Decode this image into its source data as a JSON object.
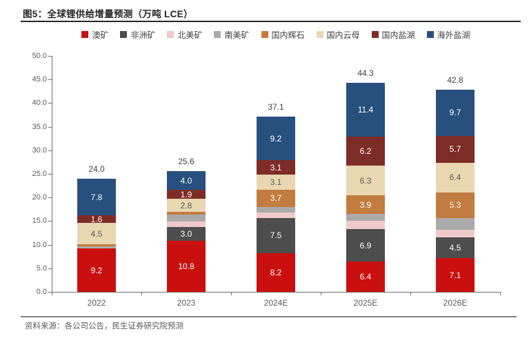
{
  "header": {
    "title": "图5：全球锂供给增量预测（万吨 LCE）"
  },
  "source_note": "资料来源：各公司公告，民生证券研究院预测",
  "colors": {
    "title_text": "#262626",
    "axis": "#6e6e6e",
    "axis_text": "#595959",
    "total_text": "#404040",
    "rule": "#7f7f7f"
  },
  "chart_data": {
    "type": "bar",
    "stacked": true,
    "title": "图5：全球锂供给增量预测（万吨 LCE）",
    "xlabel": "",
    "ylabel": "",
    "ylim": [
      0,
      50
    ],
    "y_step": 5,
    "y_ticks": [
      "0.0",
      "5.0",
      "10.0",
      "15.0",
      "20.0",
      "25.0",
      "30.0",
      "35.0",
      "40.0",
      "45.0",
      "50.0"
    ],
    "grid": false,
    "legend_position": "top",
    "categories": [
      "2022",
      "2023",
      "2024E",
      "2025E",
      "2026E"
    ],
    "totals": [
      24.0,
      25.6,
      37.1,
      44.3,
      42.8
    ],
    "total_labels": [
      "24.0",
      "25.6",
      "37.1",
      "44.3",
      "42.8"
    ],
    "series": [
      {
        "name": "澳矿",
        "color": "#c9100e",
        "label_color": "#ffffff",
        "values": [
          9.2,
          10.8,
          8.2,
          6.4,
          7.1
        ],
        "labels": [
          "9.2",
          "10.8",
          "8.2",
          "6.4",
          "7.1"
        ]
      },
      {
        "name": "非洲矿",
        "color": "#4d4d4d",
        "label_color": "#ffffff",
        "values": [
          0,
          3.0,
          7.5,
          6.9,
          4.5
        ],
        "labels": [
          "",
          "3.0",
          "7.5",
          "6.9",
          "4.5"
        ]
      },
      {
        "name": "北美矿",
        "color": "#f0caca",
        "label_color": "#595959",
        "values": [
          0,
          1.1,
          1.1,
          1.8,
          1.5
        ],
        "labels": [
          "",
          "",
          "",
          "",
          ""
        ]
      },
      {
        "name": "南美矿",
        "color": "#aaaaaa",
        "label_color": "#595959",
        "values": [
          0.4,
          1.5,
          1.2,
          1.4,
          2.6
        ],
        "labels": [
          "",
          "",
          "",
          "",
          ""
        ]
      },
      {
        "name": "国内辉石",
        "color": "#c27c3f",
        "label_color": "#ffffff",
        "values": [
          0.5,
          0.5,
          3.7,
          3.9,
          5.3
        ],
        "labels": [
          "",
          "",
          "3.7",
          "3.9",
          "5.3"
        ]
      },
      {
        "name": "国内云母",
        "color": "#e8d7b0",
        "label_color": "#595959",
        "values": [
          4.5,
          2.8,
          3.1,
          6.3,
          6.4
        ],
        "labels": [
          "4.5",
          "2.8",
          "3.1",
          "6.3",
          "6.4"
        ]
      },
      {
        "name": "国内盐湖",
        "color": "#7e2c28",
        "label_color": "#ffffff",
        "values": [
          1.6,
          1.9,
          3.1,
          6.2,
          5.7
        ],
        "labels": [
          "1.6",
          "1.9",
          "3.1",
          "6.2",
          "5.7"
        ]
      },
      {
        "name": "海外盐湖",
        "color": "#27507e",
        "label_color": "#ffffff",
        "values": [
          7.8,
          4.0,
          9.2,
          11.4,
          9.7
        ],
        "labels": [
          "7.8",
          "4.0",
          "9.2",
          "11.4",
          "9.7"
        ]
      }
    ]
  }
}
